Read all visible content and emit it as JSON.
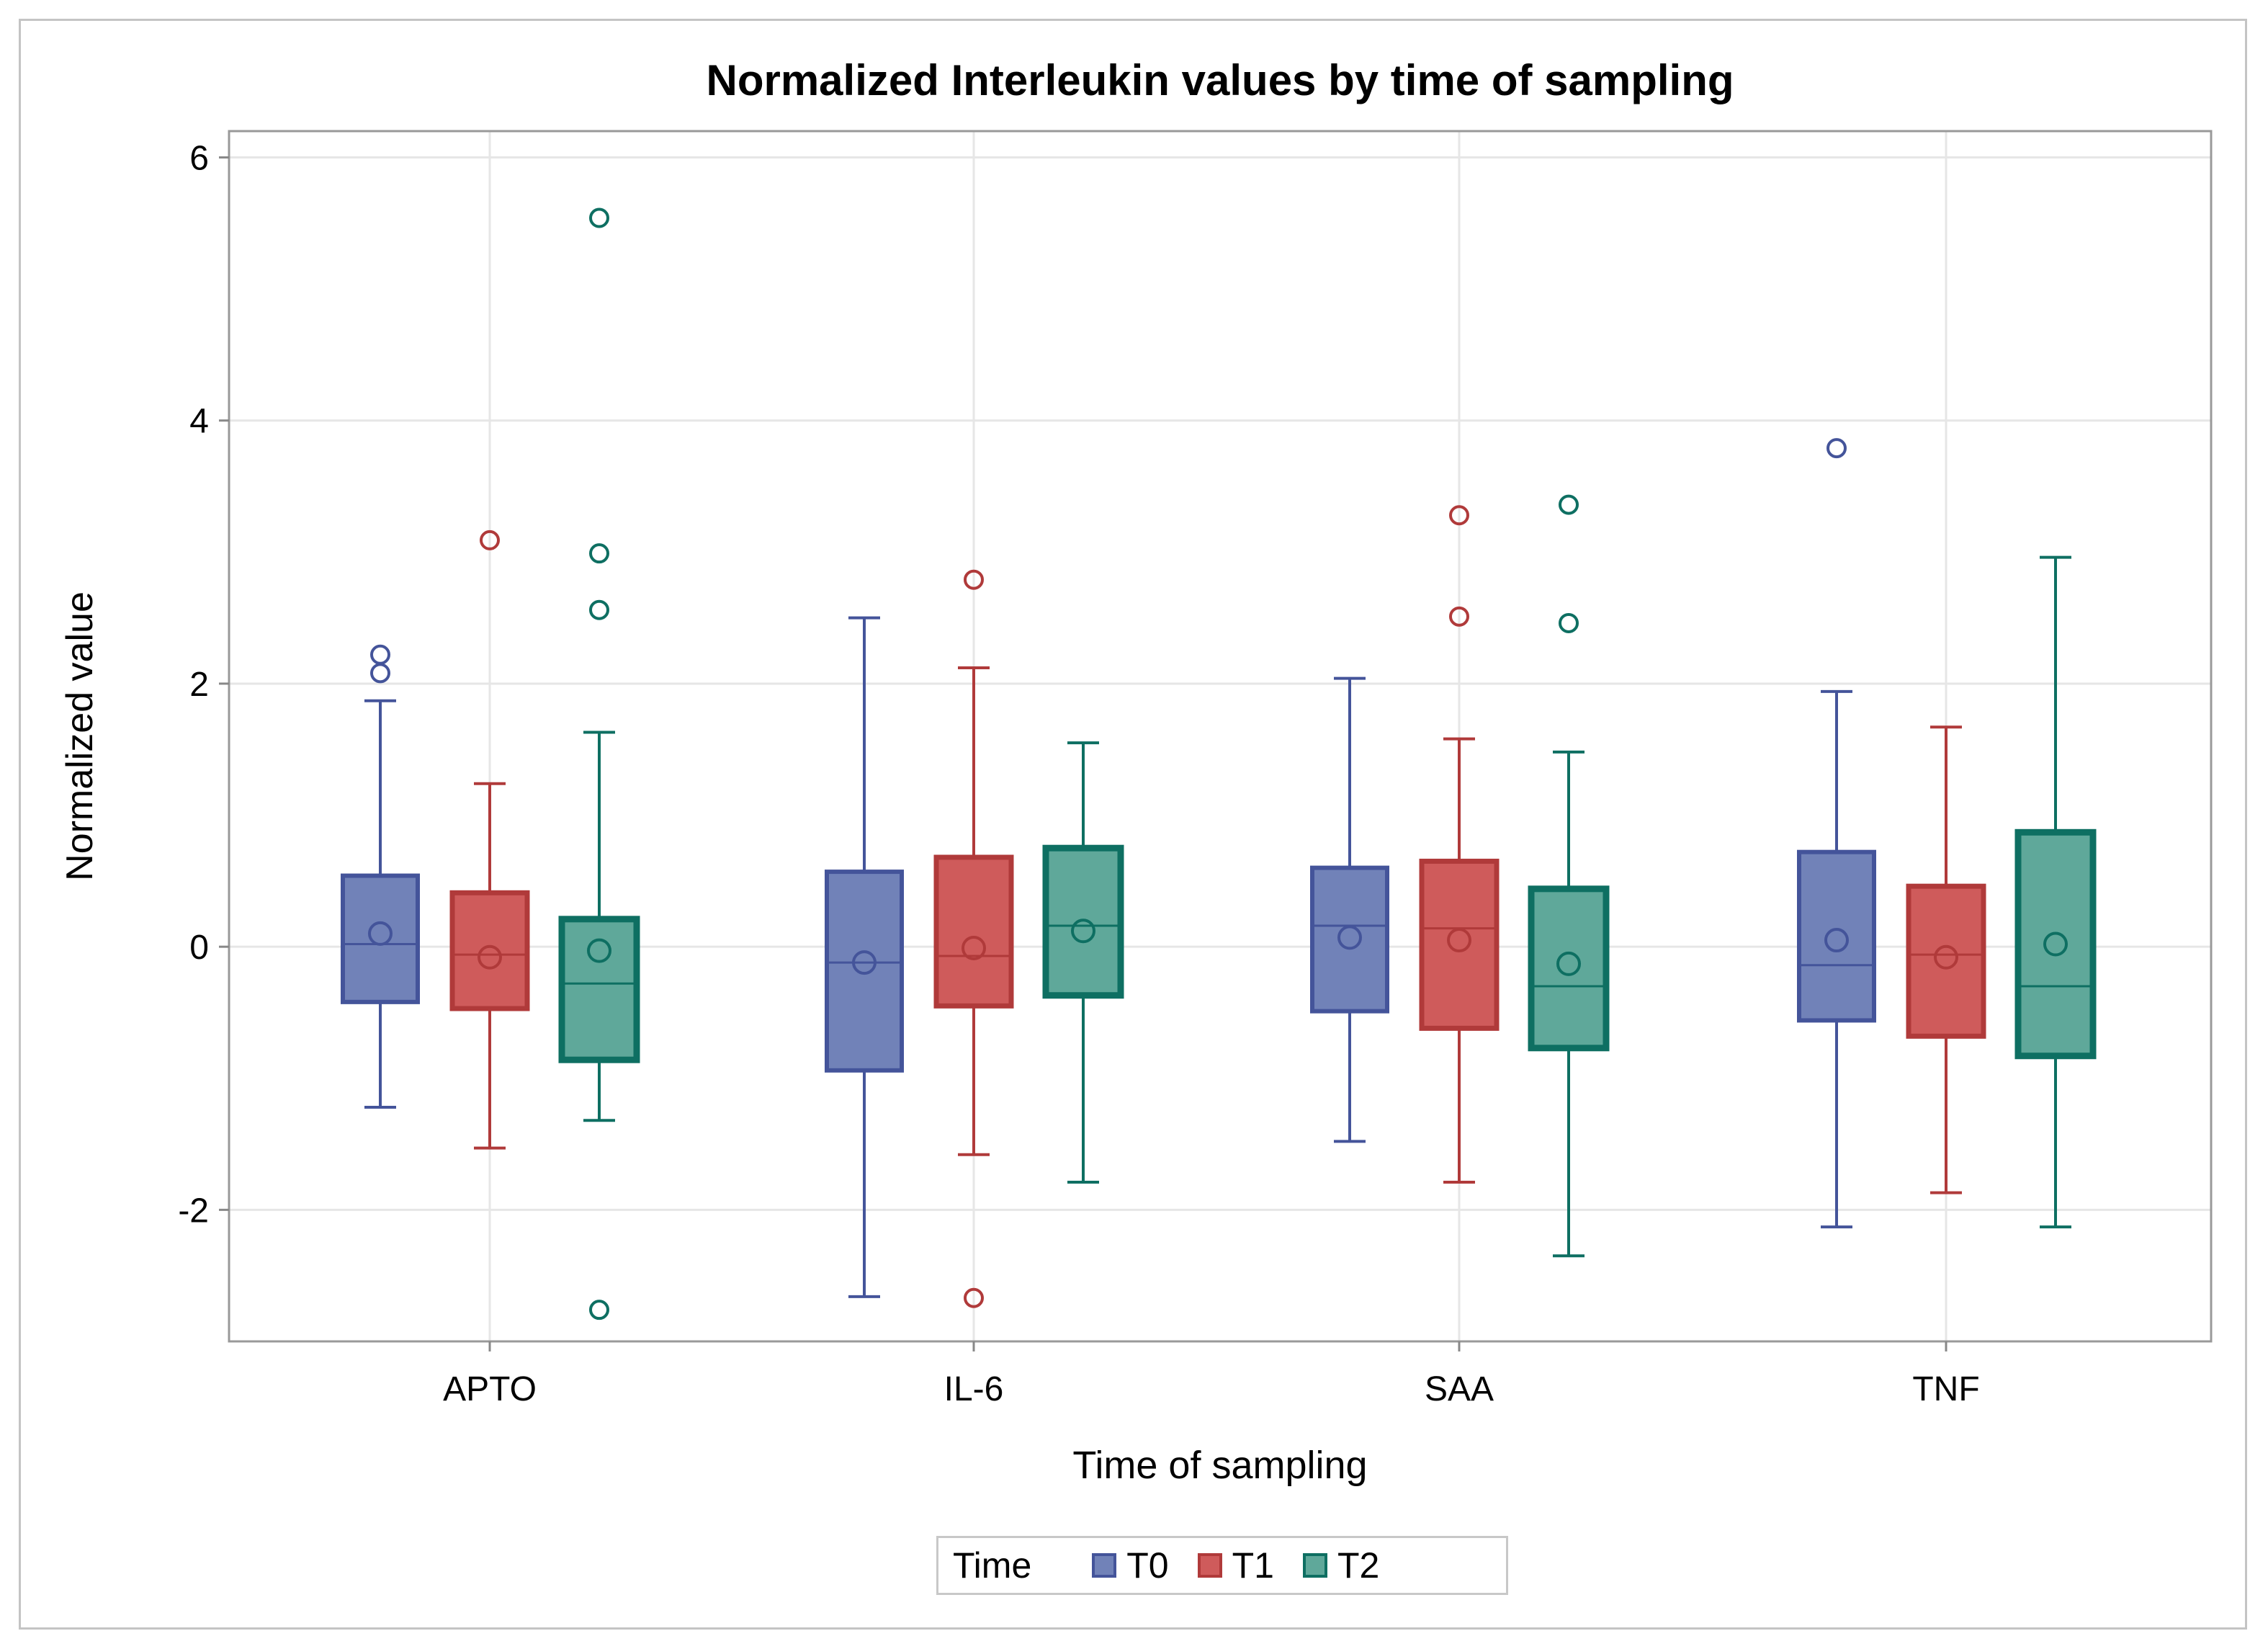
{
  "chart_data": {
    "type": "box",
    "title": "Normalized Interleukin values by time of sampling",
    "xlabel": "Time of sampling",
    "ylabel": "Normalized value",
    "ylim": [
      -3.0,
      6.2
    ],
    "yticks": [
      6,
      4,
      2,
      0,
      -2
    ],
    "ytick_labels": [
      "6",
      "4",
      "2",
      "0",
      "-2"
    ],
    "categories": [
      "APTO",
      "IL-6",
      "SAA",
      "TNF"
    ],
    "grid": true,
    "legend": {
      "title": "Time",
      "position": "bottom-center"
    },
    "series": [
      {
        "name": "T0",
        "fill": "#7182b8",
        "stroke": "#44549a",
        "boxes": [
          {
            "category": "APTO",
            "q1": -0.42,
            "median": 0.02,
            "q3": 0.54,
            "whisker_low": -1.22,
            "whisker_high": 1.87,
            "mean": 0.1,
            "outliers": [
              2.08,
              2.22
            ]
          },
          {
            "category": "IL-6",
            "q1": -0.94,
            "median": -0.12,
            "q3": 0.57,
            "whisker_low": -2.66,
            "whisker_high": 2.5,
            "mean": -0.12,
            "outliers": []
          },
          {
            "category": "SAA",
            "q1": -0.49,
            "median": 0.16,
            "q3": 0.6,
            "whisker_low": -1.48,
            "whisker_high": 2.04,
            "mean": 0.07,
            "outliers": []
          },
          {
            "category": "TNF",
            "q1": -0.56,
            "median": -0.14,
            "q3": 0.72,
            "whisker_low": -2.13,
            "whisker_high": 1.94,
            "mean": 0.05,
            "outliers": [
              3.79
            ]
          }
        ]
      },
      {
        "name": "T1",
        "fill": "#cf5b5b",
        "stroke": "#b03a3a",
        "boxes": [
          {
            "category": "APTO",
            "q1": -0.47,
            "median": -0.06,
            "q3": 0.41,
            "whisker_low": -1.53,
            "whisker_high": 1.24,
            "mean": -0.08,
            "outliers": [
              3.09
            ]
          },
          {
            "category": "IL-6",
            "q1": -0.45,
            "median": -0.07,
            "q3": 0.68,
            "whisker_low": -1.58,
            "whisker_high": 2.12,
            "mean": -0.01,
            "outliers": [
              2.79,
              -2.67
            ]
          },
          {
            "category": "SAA",
            "q1": -0.62,
            "median": 0.14,
            "q3": 0.65,
            "whisker_low": -1.79,
            "whisker_high": 1.58,
            "mean": 0.05,
            "outliers": [
              3.28,
              2.51
            ]
          },
          {
            "category": "TNF",
            "q1": -0.68,
            "median": -0.06,
            "q3": 0.46,
            "whisker_low": -1.87,
            "whisker_high": 1.67,
            "mean": -0.08,
            "outliers": []
          }
        ]
      },
      {
        "name": "T2",
        "fill": "#5fa89a",
        "stroke": "#0e6f62",
        "boxes": [
          {
            "category": "APTO",
            "q1": -0.86,
            "median": -0.28,
            "q3": 0.21,
            "whisker_low": -1.32,
            "whisker_high": 1.63,
            "mean": -0.03,
            "outliers": [
              5.54,
              2.99,
              2.56,
              -2.76
            ]
          },
          {
            "category": "IL-6",
            "q1": -0.37,
            "median": 0.16,
            "q3": 0.75,
            "whisker_low": -1.79,
            "whisker_high": 1.55,
            "mean": 0.12,
            "outliers": []
          },
          {
            "category": "SAA",
            "q1": -0.77,
            "median": -0.3,
            "q3": 0.44,
            "whisker_low": -2.35,
            "whisker_high": 1.48,
            "mean": -0.13,
            "outliers": [
              3.36,
              2.46
            ]
          },
          {
            "category": "TNF",
            "q1": -0.83,
            "median": -0.3,
            "q3": 0.87,
            "whisker_low": -2.13,
            "whisker_high": 2.96,
            "mean": 0.02,
            "outliers": []
          }
        ]
      }
    ]
  }
}
